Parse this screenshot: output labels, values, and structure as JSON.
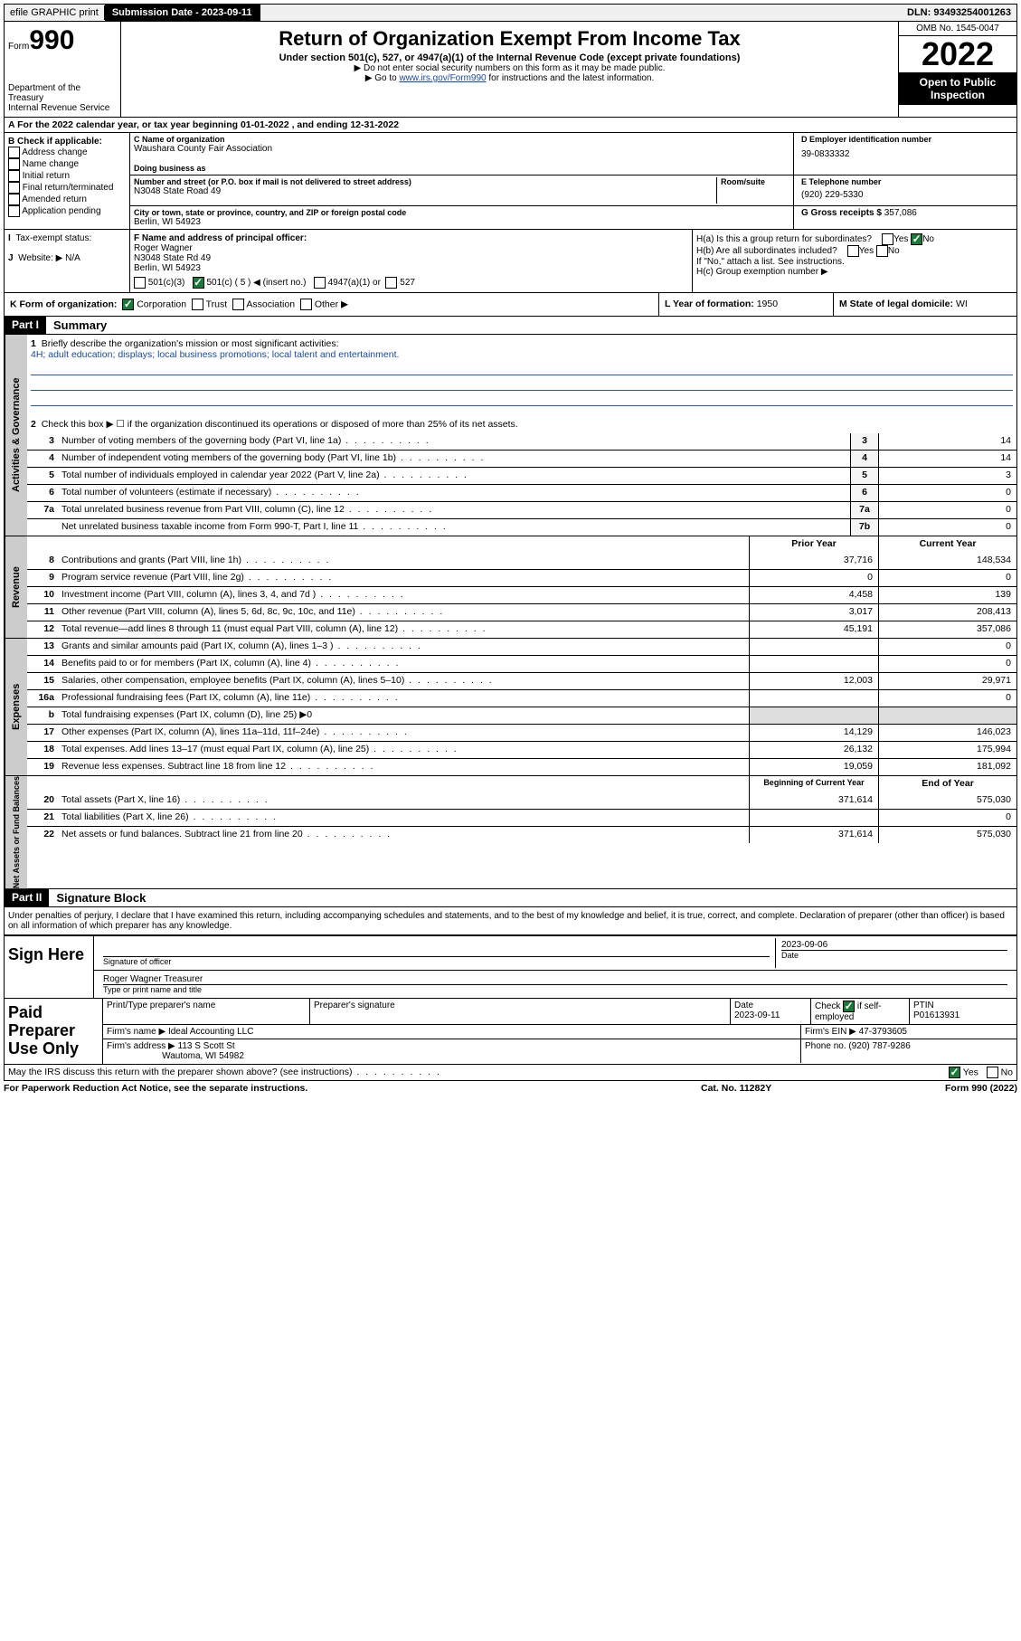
{
  "top": {
    "efile": "efile GRAPHIC print",
    "submission_label": "Submission Date - 2023-09-11",
    "dln": "DLN: 93493254001263"
  },
  "header": {
    "form_label": "Form",
    "form_no": "990",
    "dept": "Department of the Treasury",
    "irs": "Internal Revenue Service",
    "title": "Return of Organization Exempt From Income Tax",
    "sub": "Under section 501(c), 527, or 4947(a)(1) of the Internal Revenue Code (except private foundations)",
    "note1": "▶ Do not enter social security numbers on this form as it may be made public.",
    "note2_pre": "▶ Go to ",
    "note2_link": "www.irs.gov/Form990",
    "note2_post": " for instructions and the latest information.",
    "omb": "OMB No. 1545-0047",
    "year": "2022",
    "open": "Open to Public Inspection"
  },
  "sectionA": "A For the 2022 calendar year, or tax year beginning 01-01-2022   , and ending 12-31-2022",
  "B": {
    "title": "B Check if applicable:",
    "opts": [
      "Address change",
      "Name change",
      "Initial return",
      "Final return/terminated",
      "Amended return",
      "Application pending"
    ]
  },
  "C": {
    "name_label": "C Name of organization",
    "name": "Waushara County Fair Association",
    "dba_label": "Doing business as",
    "addr_label": "Number and street (or P.O. box if mail is not delivered to street address)",
    "room_label": "Room/suite",
    "addr": "N3048 State Road 49",
    "city_label": "City or town, state or province, country, and ZIP or foreign postal code",
    "city": "Berlin, WI  54923"
  },
  "D": {
    "label": "D Employer identification number",
    "val": "39-0833332"
  },
  "E": {
    "label": "E Telephone number",
    "val": "(920) 229-5330"
  },
  "G": {
    "label": "G Gross receipts $",
    "val": "357,086"
  },
  "F": {
    "label": "F Name and address of principal officer:",
    "name": "Roger Wagner",
    "addr1": "N3048 State Rd 49",
    "addr2": "Berlin, WI  54923"
  },
  "H": {
    "a": "H(a)  Is this a group return for subordinates?",
    "b": "H(b)  Are all subordinates included?",
    "note": "If \"No,\" attach a list. See instructions.",
    "c": "H(c)  Group exemption number ▶"
  },
  "I": {
    "label": "Tax-exempt status:",
    "opts": [
      "501(c)(3)",
      "501(c) ( 5 ) ◀ (insert no.)",
      "4947(a)(1) or",
      "527"
    ]
  },
  "J": {
    "label": "Website: ▶",
    "val": "N/A"
  },
  "K": "K Form of organization:",
  "K_opts": [
    "Corporation",
    "Trust",
    "Association",
    "Other ▶"
  ],
  "L": {
    "label": "L Year of formation:",
    "val": "1950"
  },
  "M": {
    "label": "M State of legal domicile:",
    "val": "WI"
  },
  "part1": {
    "header": "Part I",
    "title": "Summary",
    "l1": "Briefly describe the organization's mission or most significant activities:",
    "l1_text": "4H; adult education; displays; local business promotions; local talent and entertainment.",
    "l2": "Check this box ▶ ☐  if the organization discontinued its operations or disposed of more than 25% of its net assets.",
    "rows_ag": [
      {
        "n": "3",
        "d": "Number of voting members of the governing body (Part VI, line 1a)",
        "box": "3",
        "v": "14"
      },
      {
        "n": "4",
        "d": "Number of independent voting members of the governing body (Part VI, line 1b)",
        "box": "4",
        "v": "14"
      },
      {
        "n": "5",
        "d": "Total number of individuals employed in calendar year 2022 (Part V, line 2a)",
        "box": "5",
        "v": "3"
      },
      {
        "n": "6",
        "d": "Total number of volunteers (estimate if necessary)",
        "box": "6",
        "v": "0"
      },
      {
        "n": "7a",
        "d": "Total unrelated business revenue from Part VIII, column (C), line 12",
        "box": "7a",
        "v": "0"
      },
      {
        "n": "",
        "d": "Net unrelated business taxable income from Form 990-T, Part I, line 11",
        "box": "7b",
        "v": "0"
      }
    ],
    "hdr_prior": "Prior Year",
    "hdr_current": "Current Year",
    "rows_rev": [
      {
        "n": "8",
        "d": "Contributions and grants (Part VIII, line 1h)",
        "p": "37,716",
        "c": "148,534"
      },
      {
        "n": "9",
        "d": "Program service revenue (Part VIII, line 2g)",
        "p": "0",
        "c": "0"
      },
      {
        "n": "10",
        "d": "Investment income (Part VIII, column (A), lines 3, 4, and 7d )",
        "p": "4,458",
        "c": "139"
      },
      {
        "n": "11",
        "d": "Other revenue (Part VIII, column (A), lines 5, 6d, 8c, 9c, 10c, and 11e)",
        "p": "3,017",
        "c": "208,413"
      },
      {
        "n": "12",
        "d": "Total revenue—add lines 8 through 11 (must equal Part VIII, column (A), line 12)",
        "p": "45,191",
        "c": "357,086"
      }
    ],
    "rows_exp": [
      {
        "n": "13",
        "d": "Grants and similar amounts paid (Part IX, column (A), lines 1–3 )",
        "p": "",
        "c": "0"
      },
      {
        "n": "14",
        "d": "Benefits paid to or for members (Part IX, column (A), line 4)",
        "p": "",
        "c": "0"
      },
      {
        "n": "15",
        "d": "Salaries, other compensation, employee benefits (Part IX, column (A), lines 5–10)",
        "p": "12,003",
        "c": "29,971"
      },
      {
        "n": "16a",
        "d": "Professional fundraising fees (Part IX, column (A), line 11e)",
        "p": "",
        "c": "0"
      },
      {
        "n": "b",
        "d": "Total fundraising expenses (Part IX, column (D), line 25) ▶0",
        "p": "—",
        "c": "—"
      },
      {
        "n": "17",
        "d": "Other expenses (Part IX, column (A), lines 11a–11d, 11f–24e)",
        "p": "14,129",
        "c": "146,023"
      },
      {
        "n": "18",
        "d": "Total expenses. Add lines 13–17 (must equal Part IX, column (A), line 25)",
        "p": "26,132",
        "c": "175,994"
      },
      {
        "n": "19",
        "d": "Revenue less expenses. Subtract line 18 from line 12",
        "p": "19,059",
        "c": "181,092"
      }
    ],
    "hdr_begin": "Beginning of Current Year",
    "hdr_end": "End of Year",
    "rows_na": [
      {
        "n": "20",
        "d": "Total assets (Part X, line 16)",
        "p": "371,614",
        "c": "575,030"
      },
      {
        "n": "21",
        "d": "Total liabilities (Part X, line 26)",
        "p": "",
        "c": "0"
      },
      {
        "n": "22",
        "d": "Net assets or fund balances. Subtract line 21 from line 20",
        "p": "371,614",
        "c": "575,030"
      }
    ]
  },
  "part2": {
    "header": "Part II",
    "title": "Signature Block",
    "decl": "Under penalties of perjury, I declare that I have examined this return, including accompanying schedules and statements, and to the best of my knowledge and belief, it is true, correct, and complete. Declaration of preparer (other than officer) is based on all information of which preparer has any knowledge.",
    "sign_here": "Sign Here",
    "sig_officer": "Signature of officer",
    "sig_date": "2023-09-06",
    "date_label": "Date",
    "officer_name": "Roger Wagner  Treasurer",
    "type_label": "Type or print name and title",
    "paid": "Paid Preparer Use Only",
    "prep_name_label": "Print/Type preparer's name",
    "prep_sig_label": "Preparer's signature",
    "prep_date_label": "Date",
    "prep_date": "2023-09-11",
    "check_label": "Check ☑ if self-employed",
    "ptin_label": "PTIN",
    "ptin": "P01613931",
    "firm_name_label": "Firm's name   ▶",
    "firm_name": "Ideal Accounting LLC",
    "firm_ein_label": "Firm's EIN ▶",
    "firm_ein": "47-3793605",
    "firm_addr_label": "Firm's address ▶",
    "firm_addr1": "113 S Scott St",
    "firm_addr2": "Wautoma, WI  54982",
    "phone_label": "Phone no.",
    "phone": "(920) 787-9286"
  },
  "footer": {
    "discuss": "May the IRS discuss this return with the preparer shown above? (see instructions)",
    "paperwork": "For Paperwork Reduction Act Notice, see the separate instructions.",
    "cat": "Cat. No. 11282Y",
    "form": "Form 990 (2022)"
  }
}
